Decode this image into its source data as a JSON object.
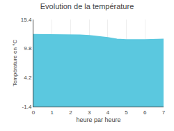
{
  "chart_data": {
    "type": "area",
    "title": "Evolution de la température",
    "xlabel": "heure par heure",
    "ylabel": "Température en °C",
    "x": [
      0,
      1,
      2,
      2.5,
      3,
      3.5,
      4,
      4.5,
      5,
      6,
      7
    ],
    "values": [
      12.5,
      12.5,
      12.5,
      12.4,
      12.3,
      12.1,
      11.9,
      11.6,
      11.5,
      11.5,
      11.6
    ],
    "color": "#5bc8df",
    "xlim": [
      0,
      7
    ],
    "xticks": [
      0,
      1,
      2,
      3,
      4,
      5,
      6,
      7
    ],
    "ylim": [
      -1.4,
      15.4
    ],
    "yticks": [
      -1.4,
      4.2,
      9.8,
      15.4
    ],
    "grid": true
  }
}
